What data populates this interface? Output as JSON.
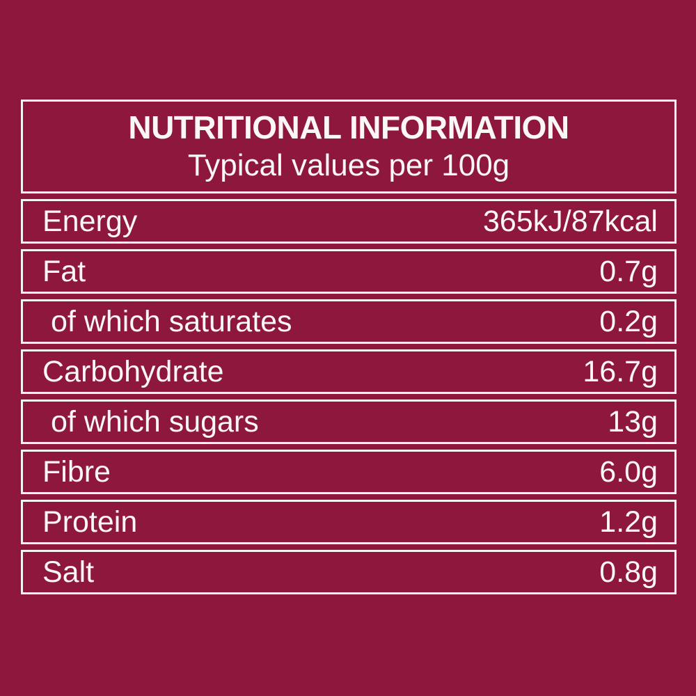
{
  "label": {
    "colors": {
      "background": "#8E173E",
      "text": "#FAF7F4",
      "border": "#F7F3F1"
    },
    "header": {
      "title": "NUTRITIONAL INFORMATION",
      "subtitle": "Typical values per 100g"
    },
    "rows": [
      {
        "name": "Energy",
        "value": "365kJ/87kcal",
        "indent": false
      },
      {
        "name": "Fat",
        "value": "0.7g",
        "indent": false
      },
      {
        "name": "of which saturates",
        "value": "0.2g",
        "indent": true
      },
      {
        "name": "Carbohydrate",
        "value": "16.7g",
        "indent": false
      },
      {
        "name": "of which sugars",
        "value": "13g",
        "indent": true
      },
      {
        "name": "Fibre",
        "value": "6.0g",
        "indent": false
      },
      {
        "name": "Protein",
        "value": "1.2g",
        "indent": false
      },
      {
        "name": "Salt",
        "value": "0.8g",
        "indent": false
      }
    ]
  }
}
